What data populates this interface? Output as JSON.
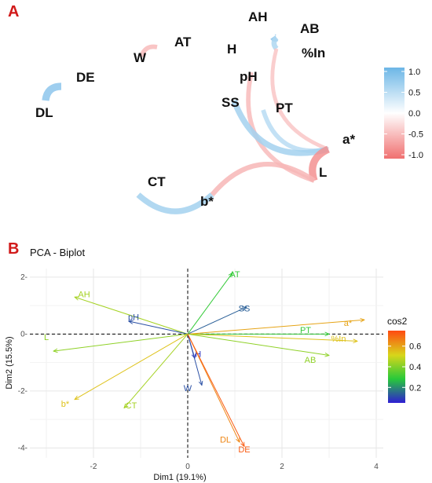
{
  "panels": {
    "a": {
      "letter": "A"
    },
    "b": {
      "letter": "B"
    }
  },
  "chart_data": [
    {
      "type": "network",
      "panel": "A",
      "nodes": [
        "AH",
        "AB",
        "AT",
        "H",
        "%In",
        "W",
        "DE",
        "pH",
        "DL",
        "SS",
        "PT",
        "a*",
        "CT",
        "L",
        "b*"
      ],
      "edges": [
        {
          "from": "DE",
          "to": "DL",
          "r": 0.7
        },
        {
          "from": "AT",
          "to": "W",
          "r": -0.3
        },
        {
          "from": "AH",
          "to": "AB",
          "r": 0.7
        },
        {
          "from": "AB",
          "to": "%In",
          "r": 0.4
        },
        {
          "from": "%In",
          "to": "a*",
          "r": -0.2
        },
        {
          "from": "pH",
          "to": "L",
          "r": -0.3
        },
        {
          "from": "PT",
          "to": "a*",
          "r": 0.3
        },
        {
          "from": "SS",
          "to": "a*",
          "r": 0.5
        },
        {
          "from": "a*",
          "to": "L",
          "r": -0.7
        },
        {
          "from": "L",
          "to": "b*",
          "r": -0.35
        },
        {
          "from": "CT",
          "to": "b*",
          "r": 0.5
        }
      ],
      "legend": {
        "ticks": [
          "1.0",
          "0.5",
          "0.0",
          "-0.5",
          "-1.0"
        ],
        "range": [
          -1,
          1
        ],
        "colors": {
          "positive": "#6cb6e6",
          "zero": "#ffffff",
          "negative": "#f07070"
        }
      }
    },
    {
      "type": "biplot",
      "panel": "B",
      "title": "PCA - Biplot",
      "xlabel": "Dim1 (19.1%)",
      "ylabel": "Dim2 (15.5%)",
      "xlim": [
        -3.35,
        4.15
      ],
      "ylim": [
        -4.35,
        2.3
      ],
      "xticks": [
        -2,
        0,
        2,
        4
      ],
      "yticks": [
        2,
        0,
        -2,
        -4
      ],
      "xtick_labels": [
        "-2",
        "0",
        "2",
        "4"
      ],
      "ytick_labels": [
        "2-",
        "0-",
        "-2-",
        "-4-"
      ],
      "variables": [
        {
          "name": "AT",
          "x": 0.95,
          "y": 2.15,
          "cos2": 0.3,
          "lx": 1.0,
          "ly": 2.1
        },
        {
          "name": "AH",
          "x": -2.4,
          "y": 1.3,
          "cos2": 0.45,
          "lx": -2.2,
          "ly": 1.4
        },
        {
          "name": "pH",
          "x": -1.25,
          "y": 0.45,
          "cos2": 0.12,
          "lx": -1.15,
          "ly": 0.6
        },
        {
          "name": "SS",
          "x": 1.25,
          "y": 0.95,
          "cos2": 0.14,
          "lx": 1.2,
          "ly": 0.9
        },
        {
          "name": "PT",
          "x": 3.0,
          "y": 0.0,
          "cos2": 0.3,
          "lx": 2.5,
          "ly": 0.15
        },
        {
          "name": "a*",
          "x": 3.75,
          "y": 0.5,
          "cos2": 0.6,
          "lx": 3.4,
          "ly": 0.4
        },
        {
          "name": "%In",
          "x": 3.6,
          "y": -0.25,
          "cos2": 0.55,
          "lx": 3.2,
          "ly": -0.15
        },
        {
          "name": "AB",
          "x": 3.0,
          "y": -0.75,
          "cos2": 0.42,
          "lx": 2.6,
          "ly": -0.9
        },
        {
          "name": "L",
          "x": -2.85,
          "y": -0.6,
          "cos2": 0.42,
          "lx": -3.0,
          "ly": -0.1
        },
        {
          "name": "H",
          "x": 0.15,
          "y": -0.85,
          "cos2": 0.08,
          "lx": 0.22,
          "ly": -0.7
        },
        {
          "name": "W",
          "x": 0.3,
          "y": -1.8,
          "cos2": 0.12,
          "lx": 0.0,
          "ly": -1.9
        },
        {
          "name": "b*",
          "x": -2.4,
          "y": -2.3,
          "cos2": 0.55,
          "lx": -2.6,
          "ly": -2.45
        },
        {
          "name": "CT",
          "x": -1.35,
          "y": -2.6,
          "cos2": 0.45,
          "lx": -1.2,
          "ly": -2.5
        },
        {
          "name": "DL",
          "x": 1.1,
          "y": -3.8,
          "cos2": 0.65,
          "lx": 0.8,
          "ly": -3.7
        },
        {
          "name": "DE",
          "x": 1.2,
          "y": -3.95,
          "cos2": 0.72,
          "lx": 1.2,
          "ly": -4.05
        }
      ],
      "legend": {
        "title": "cos2",
        "ticks": [
          "0.6",
          "0.4",
          "0.2"
        ],
        "range": [
          0.05,
          0.75
        ],
        "colors": [
          "#2e1ed3",
          "#27c93a",
          "#d8d61a",
          "#ff4a12"
        ]
      },
      "grid": true
    }
  ]
}
